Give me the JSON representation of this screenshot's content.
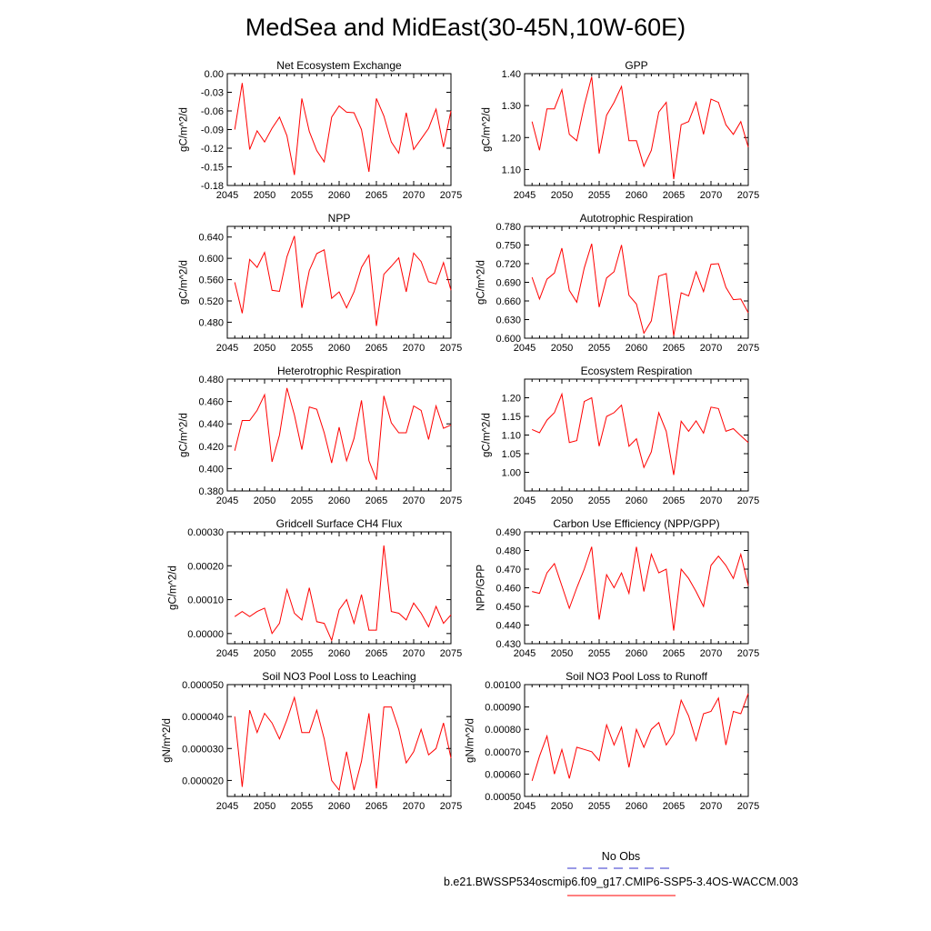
{
  "figure_title": "MedSea and MidEast(30-45N,10W-60E)",
  "legend": {
    "obs_label": "No Obs",
    "obs_color": "#3333cc",
    "model_label": "b.e21.BWSSP534oscmip6.f09_g17.CMIP6-SSP5-3.4OS-WACCM.003",
    "model_color": "#ff0000"
  },
  "chart_data": [
    {
      "type": "line",
      "title": "Net Ecosystem Exchange",
      "ylabel": "gC/m^2/d",
      "xlim": [
        2045,
        2075
      ],
      "ylim": [
        -0.18,
        0.0
      ],
      "xticks": [
        2045,
        2050,
        2055,
        2060,
        2065,
        2070,
        2075
      ],
      "yticks": [
        -0.18,
        -0.15,
        -0.12,
        -0.09,
        -0.06,
        -0.03,
        0.0
      ],
      "ytick_labels": [
        "-0.18",
        "-0.15",
        "-0.12",
        "-0.09",
        "-0.06",
        "-0.03",
        "0.00"
      ],
      "x": [
        2046,
        2047,
        2048,
        2049,
        2050,
        2051,
        2052,
        2053,
        2054,
        2055,
        2056,
        2057,
        2058,
        2059,
        2060,
        2061,
        2062,
        2063,
        2064,
        2065,
        2066,
        2067,
        2068,
        2069,
        2070,
        2071,
        2072,
        2073,
        2074,
        2075
      ],
      "values": [
        -0.09,
        -0.015,
        -0.122,
        -0.092,
        -0.11,
        -0.088,
        -0.07,
        -0.1,
        -0.163,
        -0.04,
        -0.093,
        -0.124,
        -0.142,
        -0.07,
        -0.052,
        -0.062,
        -0.063,
        -0.09,
        -0.158,
        -0.04,
        -0.068,
        -0.11,
        -0.128,
        -0.063,
        -0.122,
        -0.105,
        -0.088,
        -0.057,
        -0.118,
        -0.06
      ]
    },
    {
      "type": "line",
      "title": "GPP",
      "ylabel": "gC/m^2/d",
      "xlim": [
        2045,
        2075
      ],
      "ylim": [
        1.05,
        1.4
      ],
      "xticks": [
        2045,
        2050,
        2055,
        2060,
        2065,
        2070,
        2075
      ],
      "yticks": [
        1.1,
        1.2,
        1.3,
        1.4
      ],
      "ytick_labels": [
        "1.10",
        "1.20",
        "1.30",
        "1.40"
      ],
      "x": [
        2046,
        2047,
        2048,
        2049,
        2050,
        2051,
        2052,
        2053,
        2054,
        2055,
        2056,
        2057,
        2058,
        2059,
        2060,
        2061,
        2062,
        2063,
        2064,
        2065,
        2066,
        2067,
        2068,
        2069,
        2070,
        2071,
        2072,
        2073,
        2074,
        2075
      ],
      "values": [
        1.25,
        1.16,
        1.29,
        1.29,
        1.35,
        1.21,
        1.19,
        1.3,
        1.39,
        1.15,
        1.27,
        1.31,
        1.36,
        1.19,
        1.19,
        1.11,
        1.16,
        1.28,
        1.31,
        1.07,
        1.24,
        1.25,
        1.31,
        1.21,
        1.32,
        1.31,
        1.24,
        1.21,
        1.25,
        1.17
      ]
    },
    {
      "type": "line",
      "title": "NPP",
      "ylabel": "gC/m^2/d",
      "xlim": [
        2045,
        2075
      ],
      "ylim": [
        0.45,
        0.66
      ],
      "xticks": [
        2045,
        2050,
        2055,
        2060,
        2065,
        2070,
        2075
      ],
      "yticks": [
        0.48,
        0.52,
        0.56,
        0.6,
        0.64
      ],
      "ytick_labels": [
        "0.480",
        "0.520",
        "0.560",
        "0.600",
        "0.640"
      ],
      "x": [
        2046,
        2047,
        2048,
        2049,
        2050,
        2051,
        2052,
        2053,
        2054,
        2055,
        2056,
        2057,
        2058,
        2059,
        2060,
        2061,
        2062,
        2063,
        2064,
        2065,
        2066,
        2067,
        2068,
        2069,
        2070,
        2071,
        2072,
        2073,
        2074,
        2075
      ],
      "values": [
        0.555,
        0.497,
        0.598,
        0.583,
        0.611,
        0.54,
        0.538,
        0.603,
        0.642,
        0.507,
        0.577,
        0.609,
        0.616,
        0.525,
        0.537,
        0.507,
        0.537,
        0.583,
        0.606,
        0.473,
        0.57,
        0.585,
        0.601,
        0.537,
        0.61,
        0.594,
        0.556,
        0.552,
        0.592,
        0.54
      ]
    },
    {
      "type": "line",
      "title": "Autotrophic Respiration",
      "ylabel": "gC/m^2/d",
      "xlim": [
        2045,
        2075
      ],
      "ylim": [
        0.6,
        0.78
      ],
      "xticks": [
        2045,
        2050,
        2055,
        2060,
        2065,
        2070,
        2075
      ],
      "yticks": [
        0.6,
        0.63,
        0.66,
        0.69,
        0.72,
        0.75,
        0.78
      ],
      "ytick_labels": [
        "0.600",
        "0.630",
        "0.660",
        "0.690",
        "0.720",
        "0.750",
        "0.780"
      ],
      "x": [
        2046,
        2047,
        2048,
        2049,
        2050,
        2051,
        2052,
        2053,
        2054,
        2055,
        2056,
        2057,
        2058,
        2059,
        2060,
        2061,
        2062,
        2063,
        2064,
        2065,
        2066,
        2067,
        2068,
        2069,
        2070,
        2071,
        2072,
        2073,
        2074,
        2075
      ],
      "values": [
        0.698,
        0.663,
        0.695,
        0.705,
        0.745,
        0.677,
        0.658,
        0.713,
        0.752,
        0.65,
        0.697,
        0.707,
        0.75,
        0.669,
        0.655,
        0.608,
        0.628,
        0.7,
        0.704,
        0.604,
        0.673,
        0.668,
        0.707,
        0.675,
        0.719,
        0.72,
        0.682,
        0.662,
        0.663,
        0.641
      ]
    },
    {
      "type": "line",
      "title": "Heterotrophic Respiration",
      "ylabel": "gC/m^2/d",
      "xlim": [
        2045,
        2075
      ],
      "ylim": [
        0.38,
        0.48
      ],
      "xticks": [
        2045,
        2050,
        2055,
        2060,
        2065,
        2070,
        2075
      ],
      "yticks": [
        0.38,
        0.4,
        0.42,
        0.44,
        0.46,
        0.48
      ],
      "ytick_labels": [
        "0.380",
        "0.400",
        "0.420",
        "0.440",
        "0.460",
        "0.480"
      ],
      "x": [
        2046,
        2047,
        2048,
        2049,
        2050,
        2051,
        2052,
        2053,
        2054,
        2055,
        2056,
        2057,
        2058,
        2059,
        2060,
        2061,
        2062,
        2063,
        2064,
        2065,
        2066,
        2067,
        2068,
        2069,
        2070,
        2071,
        2072,
        2073,
        2074,
        2075
      ],
      "values": [
        0.416,
        0.443,
        0.443,
        0.452,
        0.466,
        0.406,
        0.43,
        0.472,
        0.448,
        0.417,
        0.455,
        0.453,
        0.432,
        0.405,
        0.437,
        0.407,
        0.427,
        0.461,
        0.407,
        0.39,
        0.465,
        0.441,
        0.432,
        0.432,
        0.456,
        0.452,
        0.426,
        0.456,
        0.436,
        0.439
      ]
    },
    {
      "type": "line",
      "title": "Ecosystem Respiration",
      "ylabel": "gC/m^2/d",
      "xlim": [
        2045,
        2075
      ],
      "ylim": [
        0.95,
        1.25
      ],
      "xticks": [
        2045,
        2050,
        2055,
        2060,
        2065,
        2070,
        2075
      ],
      "yticks": [
        1.0,
        1.05,
        1.1,
        1.15,
        1.2
      ],
      "ytick_labels": [
        "1.00",
        "1.05",
        "1.10",
        "1.15",
        "1.20"
      ],
      "x": [
        2046,
        2047,
        2048,
        2049,
        2050,
        2051,
        2052,
        2053,
        2054,
        2055,
        2056,
        2057,
        2058,
        2059,
        2060,
        2061,
        2062,
        2063,
        2064,
        2065,
        2066,
        2067,
        2068,
        2069,
        2070,
        2071,
        2072,
        2073,
        2074,
        2075
      ],
      "values": [
        1.115,
        1.106,
        1.14,
        1.16,
        1.21,
        1.08,
        1.085,
        1.19,
        1.2,
        1.07,
        1.15,
        1.16,
        1.18,
        1.07,
        1.09,
        1.013,
        1.055,
        1.16,
        1.11,
        0.993,
        1.137,
        1.11,
        1.138,
        1.105,
        1.175,
        1.171,
        1.11,
        1.117,
        1.098,
        1.08
      ]
    },
    {
      "type": "line",
      "title": "Gridcell Surface CH4 Flux",
      "ylabel": "gC/m^2/d",
      "xlim": [
        2045,
        2075
      ],
      "ylim": [
        -3e-05,
        0.0003
      ],
      "xticks": [
        2045,
        2050,
        2055,
        2060,
        2065,
        2070,
        2075
      ],
      "yticks": [
        0.0,
        0.0001,
        0.0002,
        0.0003
      ],
      "ytick_labels": [
        "0.00000",
        "0.00010",
        "0.00020",
        "0.00030"
      ],
      "x": [
        2046,
        2047,
        2048,
        2049,
        2050,
        2051,
        2052,
        2053,
        2054,
        2055,
        2056,
        2057,
        2058,
        2059,
        2060,
        2061,
        2062,
        2063,
        2064,
        2065,
        2066,
        2067,
        2068,
        2069,
        2070,
        2071,
        2072,
        2073,
        2074,
        2075
      ],
      "values": [
        5e-05,
        6.5e-05,
        5e-05,
        6.5e-05,
        7.5e-05,
        0.0,
        3e-05,
        0.00013,
        6e-05,
        4e-05,
        0.000135,
        3.5e-05,
        3e-05,
        -2e-05,
        7e-05,
        0.0001,
        3e-05,
        0.000115,
        1e-05,
        1e-05,
        0.00026,
        6.5e-05,
        6e-05,
        4e-05,
        9e-05,
        6e-05,
        2e-05,
        8e-05,
        3e-05,
        5.5e-05
      ]
    },
    {
      "type": "line",
      "title": "Carbon Use Efficiency (NPP/GPP)",
      "ylabel": "NPP/GPP",
      "xlim": [
        2045,
        2075
      ],
      "ylim": [
        0.43,
        0.49
      ],
      "xticks": [
        2045,
        2050,
        2055,
        2060,
        2065,
        2070,
        2075
      ],
      "yticks": [
        0.43,
        0.44,
        0.45,
        0.46,
        0.47,
        0.48,
        0.49
      ],
      "ytick_labels": [
        "0.430",
        "0.440",
        "0.450",
        "0.460",
        "0.470",
        "0.480",
        "0.490"
      ],
      "x": [
        2046,
        2047,
        2048,
        2049,
        2050,
        2051,
        2052,
        2053,
        2054,
        2055,
        2056,
        2057,
        2058,
        2059,
        2060,
        2061,
        2062,
        2063,
        2064,
        2065,
        2066,
        2067,
        2068,
        2069,
        2070,
        2071,
        2072,
        2073,
        2074,
        2075
      ],
      "values": [
        0.458,
        0.457,
        0.468,
        0.473,
        0.461,
        0.449,
        0.46,
        0.47,
        0.482,
        0.443,
        0.467,
        0.46,
        0.468,
        0.457,
        0.482,
        0.458,
        0.478,
        0.468,
        0.47,
        0.437,
        0.47,
        0.465,
        0.458,
        0.45,
        0.472,
        0.477,
        0.472,
        0.465,
        0.478,
        0.461
      ]
    },
    {
      "type": "line",
      "title": "Soil NO3 Pool Loss to Leaching",
      "ylabel": "gN/m^2/d",
      "xlim": [
        2045,
        2075
      ],
      "ylim": [
        1.5e-05,
        5e-05
      ],
      "xticks": [
        2045,
        2050,
        2055,
        2060,
        2065,
        2070,
        2075
      ],
      "yticks": [
        2e-05,
        3e-05,
        4e-05,
        5e-05
      ],
      "ytick_labels": [
        "0.000020",
        "0.000030",
        "0.000040",
        "0.000050"
      ],
      "x": [
        2046,
        2047,
        2048,
        2049,
        2050,
        2051,
        2052,
        2053,
        2054,
        2055,
        2056,
        2057,
        2058,
        2059,
        2060,
        2061,
        2062,
        2063,
        2064,
        2065,
        2066,
        2067,
        2068,
        2069,
        2070,
        2071,
        2072,
        2073,
        2074,
        2075
      ],
      "values": [
        4e-05,
        1.8e-05,
        4.2e-05,
        3.5e-05,
        4.1e-05,
        3.8e-05,
        3.3e-05,
        3.9e-05,
        4.6e-05,
        3.5e-05,
        3.5e-05,
        4.2e-05,
        3.3e-05,
        2e-05,
        1.7e-05,
        2.9e-05,
        1.7e-05,
        2.6e-05,
        4.1e-05,
        1.75e-05,
        4.3e-05,
        4.3e-05,
        3.6e-05,
        2.55e-05,
        2.9e-05,
        3.6e-05,
        2.8e-05,
        3e-05,
        3.8e-05,
        2.7e-05
      ]
    },
    {
      "type": "line",
      "title": "Soil NO3 Pool Loss to Runoff",
      "ylabel": "gN/m^2/d",
      "xlim": [
        2045,
        2075
      ],
      "ylim": [
        0.0005,
        0.001
      ],
      "xticks": [
        2045,
        2050,
        2055,
        2060,
        2065,
        2070,
        2075
      ],
      "yticks": [
        0.0005,
        0.0006,
        0.0007,
        0.0008,
        0.0009,
        0.001
      ],
      "ytick_labels": [
        "0.00050",
        "0.00060",
        "0.00070",
        "0.00080",
        "0.00090",
        "0.00100"
      ],
      "x": [
        2046,
        2047,
        2048,
        2049,
        2050,
        2051,
        2052,
        2053,
        2054,
        2055,
        2056,
        2057,
        2058,
        2059,
        2060,
        2061,
        2062,
        2063,
        2064,
        2065,
        2066,
        2067,
        2068,
        2069,
        2070,
        2071,
        2072,
        2073,
        2074,
        2075
      ],
      "values": [
        0.00057,
        0.00068,
        0.00077,
        0.0006,
        0.00071,
        0.00058,
        0.00072,
        0.00071,
        0.0007,
        0.00066,
        0.00082,
        0.00073,
        0.00081,
        0.00063,
        0.0008,
        0.00072,
        0.0008,
        0.00083,
        0.00073,
        0.00078,
        0.00093,
        0.00086,
        0.00075,
        0.00087,
        0.00088,
        0.00094,
        0.00073,
        0.00088,
        0.00087,
        0.00096
      ]
    }
  ]
}
